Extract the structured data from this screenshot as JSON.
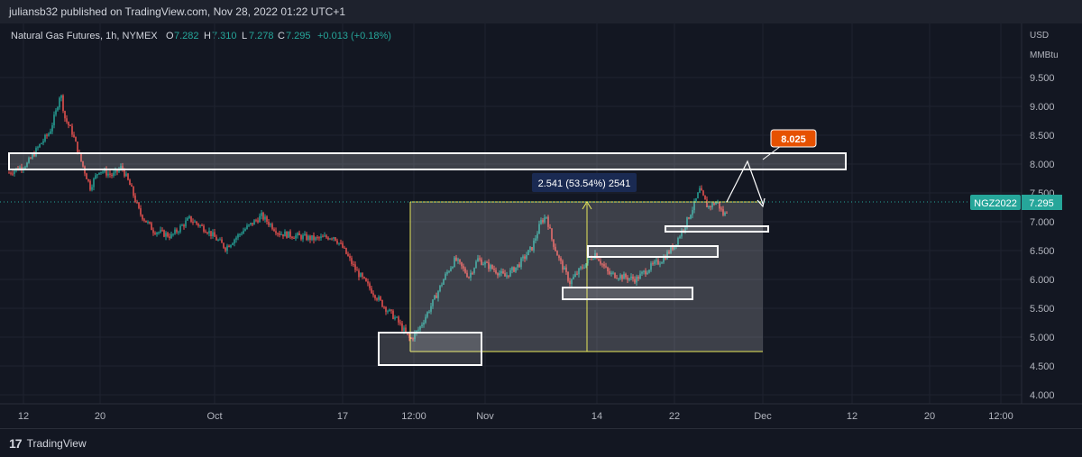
{
  "header": {
    "published_by": "juliansb32 published on TradingView.com, Nov 28, 2022 01:22 UTC+1"
  },
  "legend": {
    "symbol": "Natural Gas Futures, 1h, NYMEX",
    "o_label": "O",
    "o_value": "7.282",
    "h_label": "H",
    "h_value": "7.310",
    "l_label": "L",
    "l_value": "7.278",
    "c_label": "C",
    "c_value": "7.295",
    "change": "+0.013 (+0.18%)"
  },
  "price_axis": {
    "unit_line1": "USD",
    "unit_line2": "MMBtu",
    "ticks": [
      "9.500",
      "9.000",
      "8.500",
      "8.000",
      "7.500",
      "7.000",
      "6.500",
      "6.000",
      "5.500",
      "5.000",
      "4.500",
      "4.000"
    ]
  },
  "time_axis": {
    "labels": [
      "12",
      "20",
      "Oct",
      "17",
      "12:00",
      "Nov",
      "14",
      "22",
      "Dec",
      "12",
      "20",
      "12:00"
    ]
  },
  "badges": {
    "ticker": "NGZ2022",
    "last_price": "7.295",
    "target": "8.025",
    "measure": "2.541 (53.54%) 2541"
  },
  "colors": {
    "background": "#131722",
    "up": "#26a69a",
    "down": "#ef5350",
    "target_badge": "#e65100",
    "measure_line": "#e8e85a",
    "ticker_badge": "#26a69a"
  },
  "footer": {
    "brand": "TradingView"
  }
}
